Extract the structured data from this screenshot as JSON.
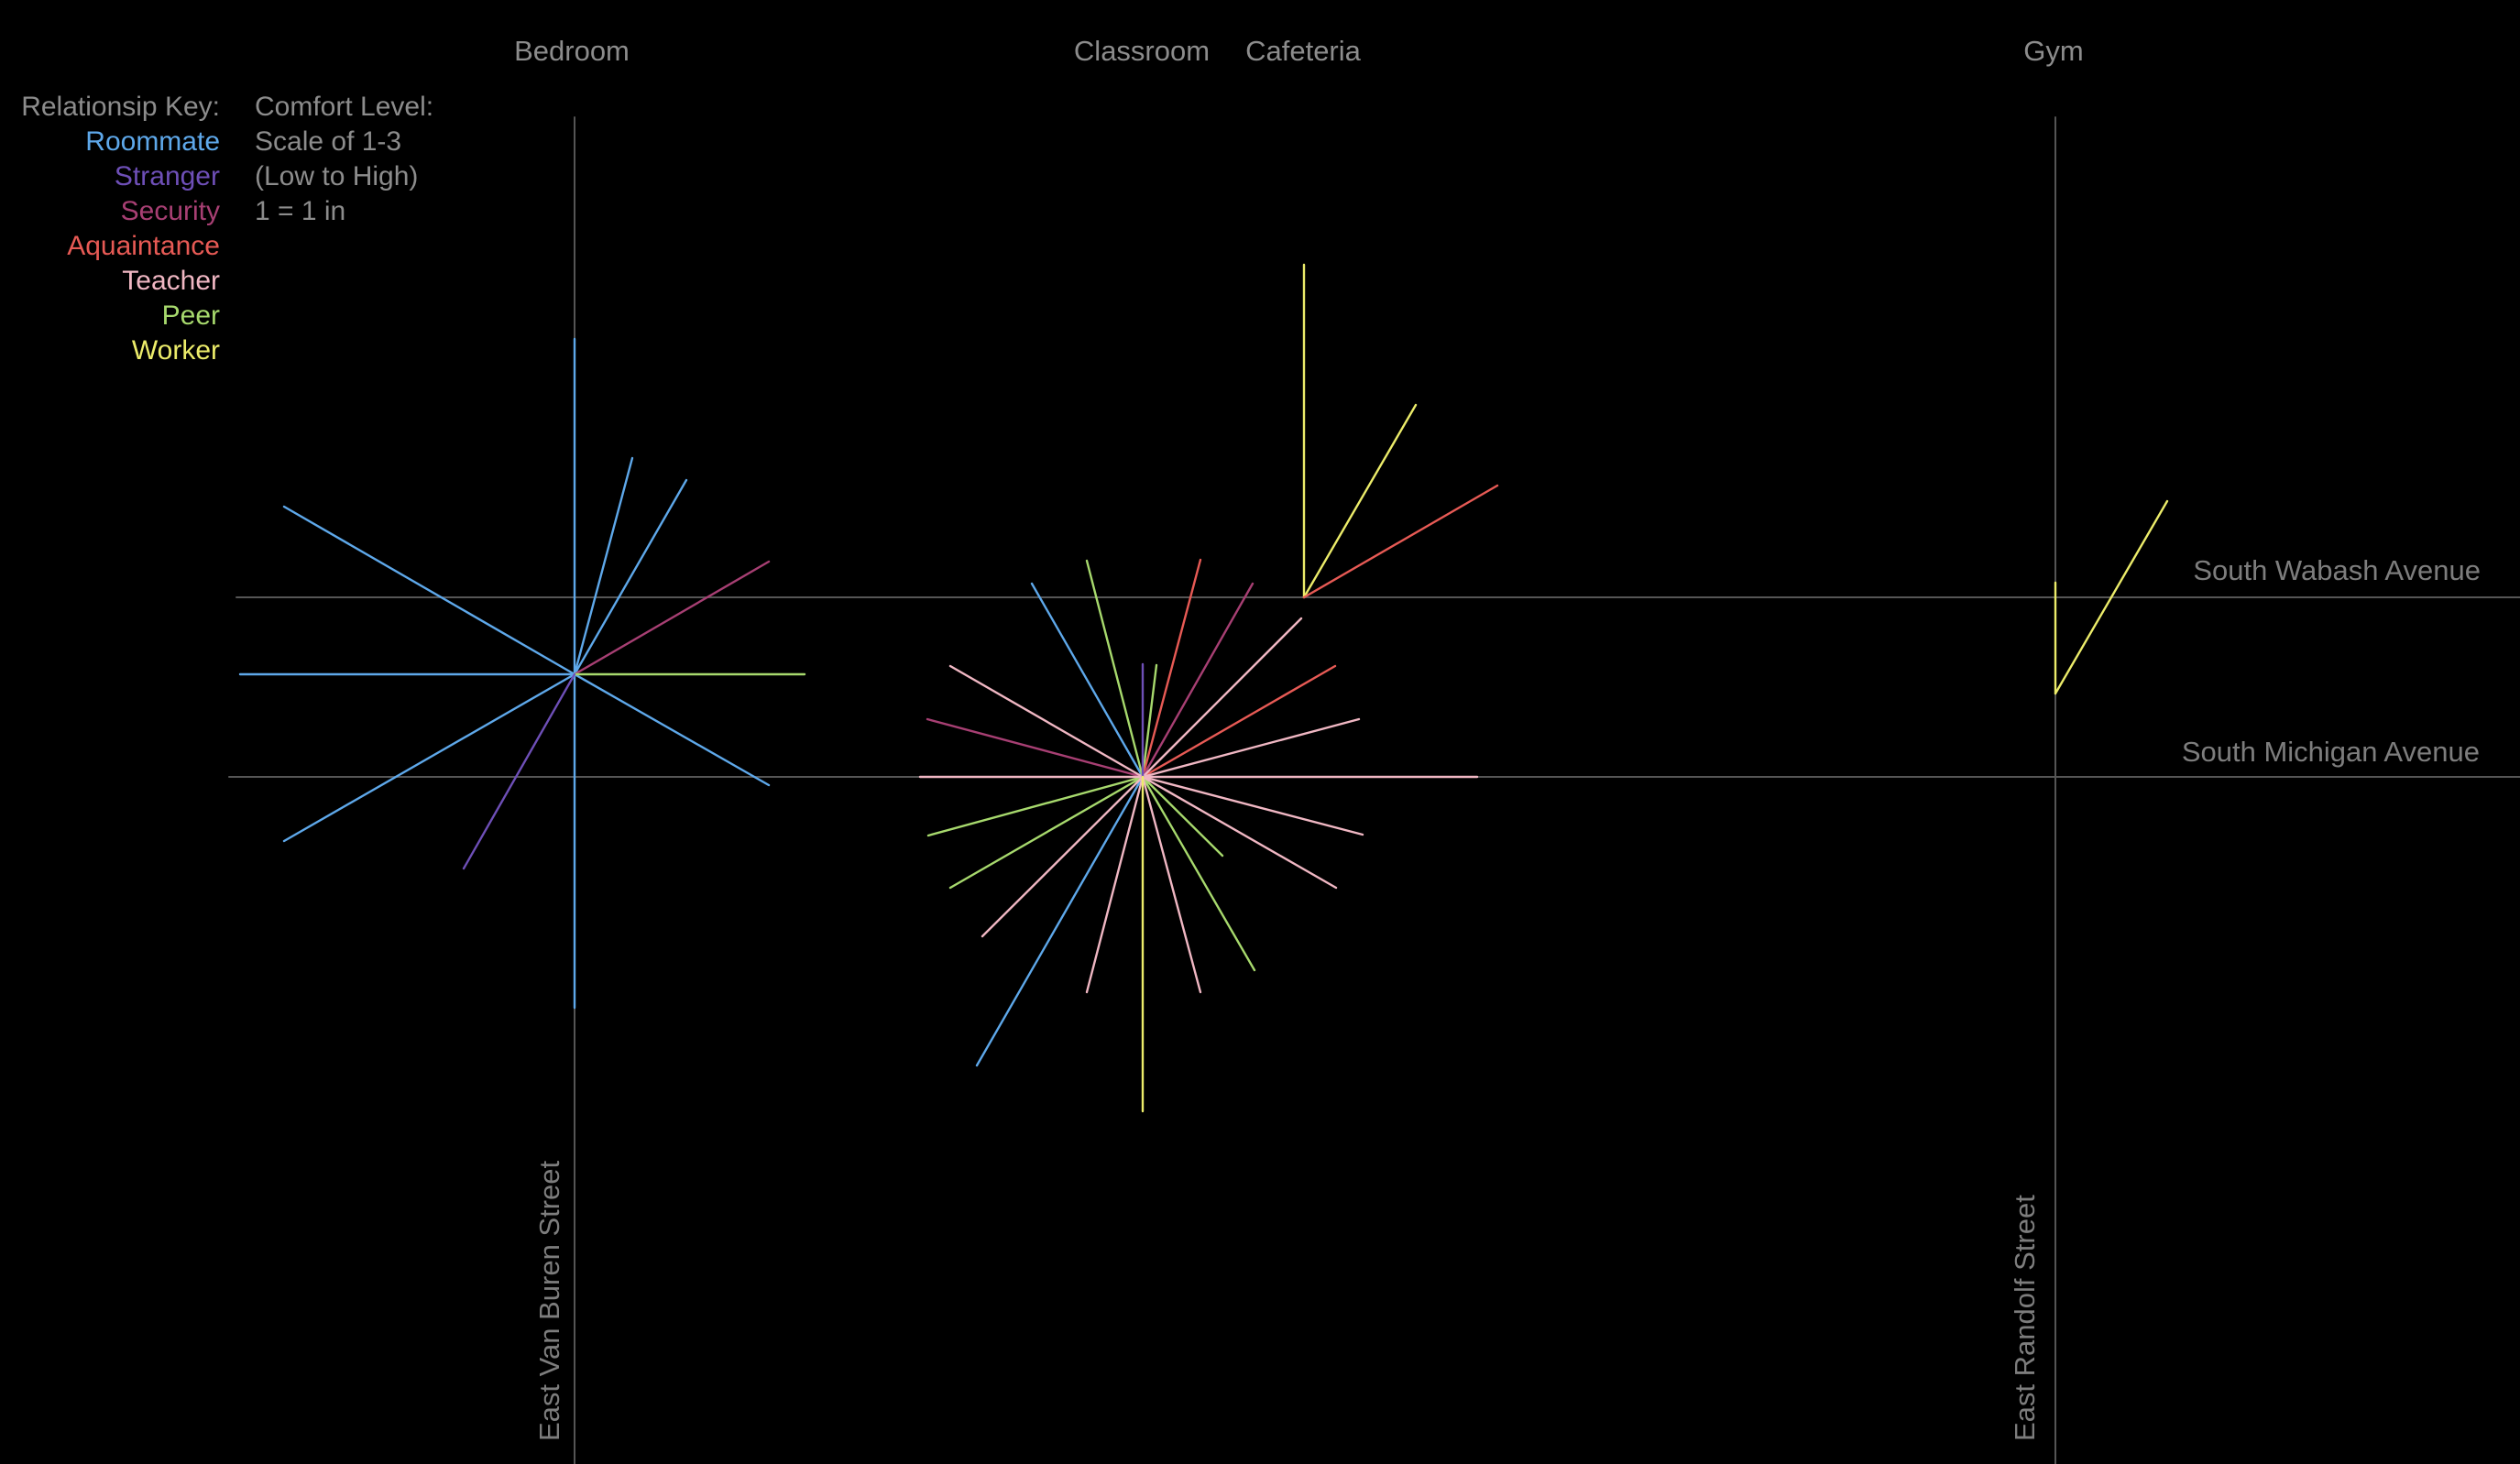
{
  "locations": {
    "bedroom": "Bedroom",
    "classroom": "Classroom",
    "cafeteria": "Cafeteria",
    "gym": "Gym"
  },
  "legend": {
    "title": "Relationsip Key:",
    "items": [
      {
        "label": "Roommate",
        "color": "#5ea8ea"
      },
      {
        "label": "Stranger",
        "color": "#6e4fb7"
      },
      {
        "label": "Security",
        "color": "#a73f73"
      },
      {
        "label": "Aquaintance",
        "color": "#e75a55"
      },
      {
        "label": "Teacher",
        "color": "#f0b7c3"
      },
      {
        "label": "Peer",
        "color": "#a7d96d"
      },
      {
        "label": "Worker",
        "color": "#ecec6a"
      }
    ]
  },
  "comfort": {
    "title": "Comfort Level:",
    "scale": "Scale of 1-3",
    "range": "(Low to High)",
    "unit": "1 = 1 in"
  },
  "streets": {
    "wabash": "South Wabash Avenue",
    "michigan": "South Michigan Avenue",
    "van_buren": "East Van Buren Street",
    "randolf": "East Randolf Street"
  }
}
